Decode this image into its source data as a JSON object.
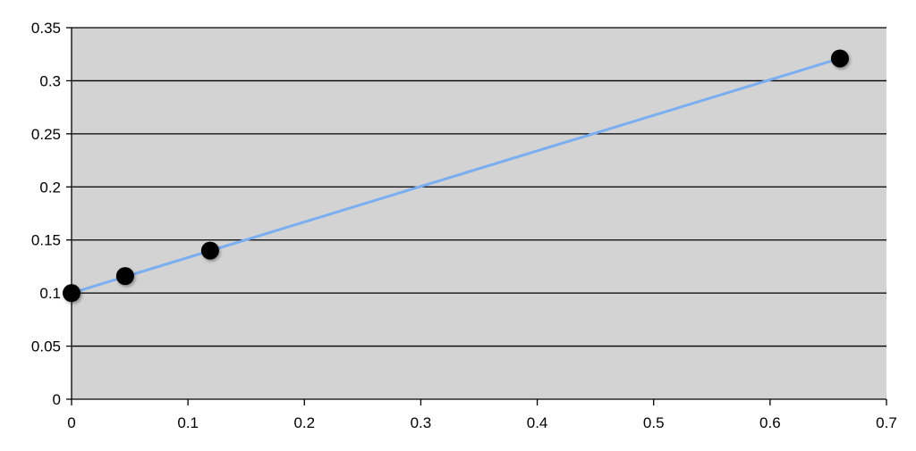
{
  "chart_data": {
    "type": "scatter",
    "title": "",
    "xlabel": "",
    "ylabel": "",
    "xlim": [
      0,
      0.7
    ],
    "ylim": [
      0,
      0.35
    ],
    "x_ticks": [
      "0",
      "0.1",
      "0.2",
      "0.3",
      "0.4",
      "0.5",
      "0.6",
      "0.7"
    ],
    "y_ticks": [
      "0",
      "0.05",
      "0.1",
      "0.15",
      "0.2",
      "0.25",
      "0.3",
      "0.35"
    ],
    "grid": "horizontal",
    "legend": "none",
    "series": [
      {
        "points": [
          {
            "x": 0.0,
            "y": 0.1
          },
          {
            "x": 0.046,
            "y": 0.116
          },
          {
            "x": 0.119,
            "y": 0.14
          },
          {
            "x": 0.66,
            "y": 0.321
          }
        ],
        "color": "#000000"
      }
    ],
    "trendline": {
      "type": "linear",
      "from": {
        "x": 0.0,
        "y": 0.1
      },
      "to": {
        "x": 0.66,
        "y": 0.321
      },
      "color": "#7aaef0"
    },
    "colors": {
      "plot_background": "#d3d3d3",
      "gridline": "#000000",
      "axis": "#000000"
    }
  }
}
